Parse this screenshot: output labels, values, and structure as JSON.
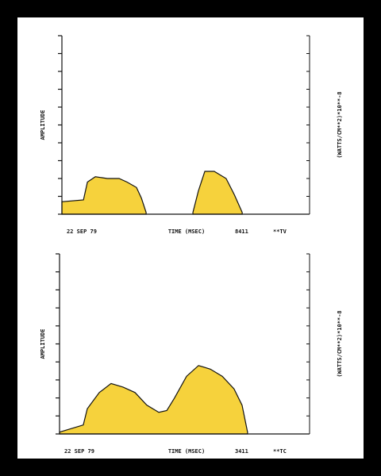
{
  "chart_data": [
    {
      "type": "area",
      "ylabel": "AMPLITUDE",
      "y2label": "(WATTS/CM**2)*10**-8",
      "date": "22 SEP 79",
      "xlabel": "TIME (MSEC)",
      "code": "8411",
      "tag": "**TV",
      "xlim": [
        0,
        100
      ],
      "ylim": [
        0,
        10
      ],
      "yticks": [
        0,
        1,
        2,
        3,
        4,
        5,
        6,
        7,
        8,
        9,
        10
      ],
      "x": [
        0,
        8.7,
        10.3,
        13.5,
        18.3,
        23.1,
        26.3,
        30.1,
        32.1,
        34.0,
        43,
        52.9,
        55.1,
        57.7,
        61.5,
        66.3,
        69.6,
        72.8
      ],
      "series": [
        {
          "color": "#f6d23c",
          "values": [
            0.7,
            0.8,
            1.8,
            2.1,
            2.0,
            2.0,
            1.8,
            1.5,
            0.9,
            0.1,
            null,
            0.1,
            1.3,
            2.4,
            2.4,
            2.0,
            1.1,
            0.1
          ]
        }
      ]
    },
    {
      "type": "area",
      "ylabel": "AMPLITUDE",
      "y2label": "(WATTS/CM**2)*10**-8",
      "date": "22 SEP 79",
      "xlabel": "TIME (MSEC)",
      "code": "3411",
      "tag": "**TC",
      "xlim": [
        0,
        100
      ],
      "ylim": [
        0,
        10
      ],
      "yticks": [
        0,
        1,
        2,
        3,
        4,
        5,
        6,
        7,
        8,
        9,
        10
      ],
      "x": [
        0,
        9.5,
        11.1,
        15.9,
        20.6,
        25.4,
        30.2,
        34.9,
        39.7,
        42.9,
        46.0,
        50.8,
        55.6,
        60.3,
        65.1,
        69.8,
        73.0,
        75.2
      ],
      "series": [
        {
          "color": "#f6d23c",
          "values": [
            0.1,
            0.5,
            1.4,
            2.3,
            2.8,
            2.6,
            2.3,
            1.6,
            1.2,
            1.3,
            2.0,
            3.2,
            3.8,
            3.6,
            3.2,
            2.5,
            1.6,
            0.1
          ]
        }
      ]
    }
  ]
}
